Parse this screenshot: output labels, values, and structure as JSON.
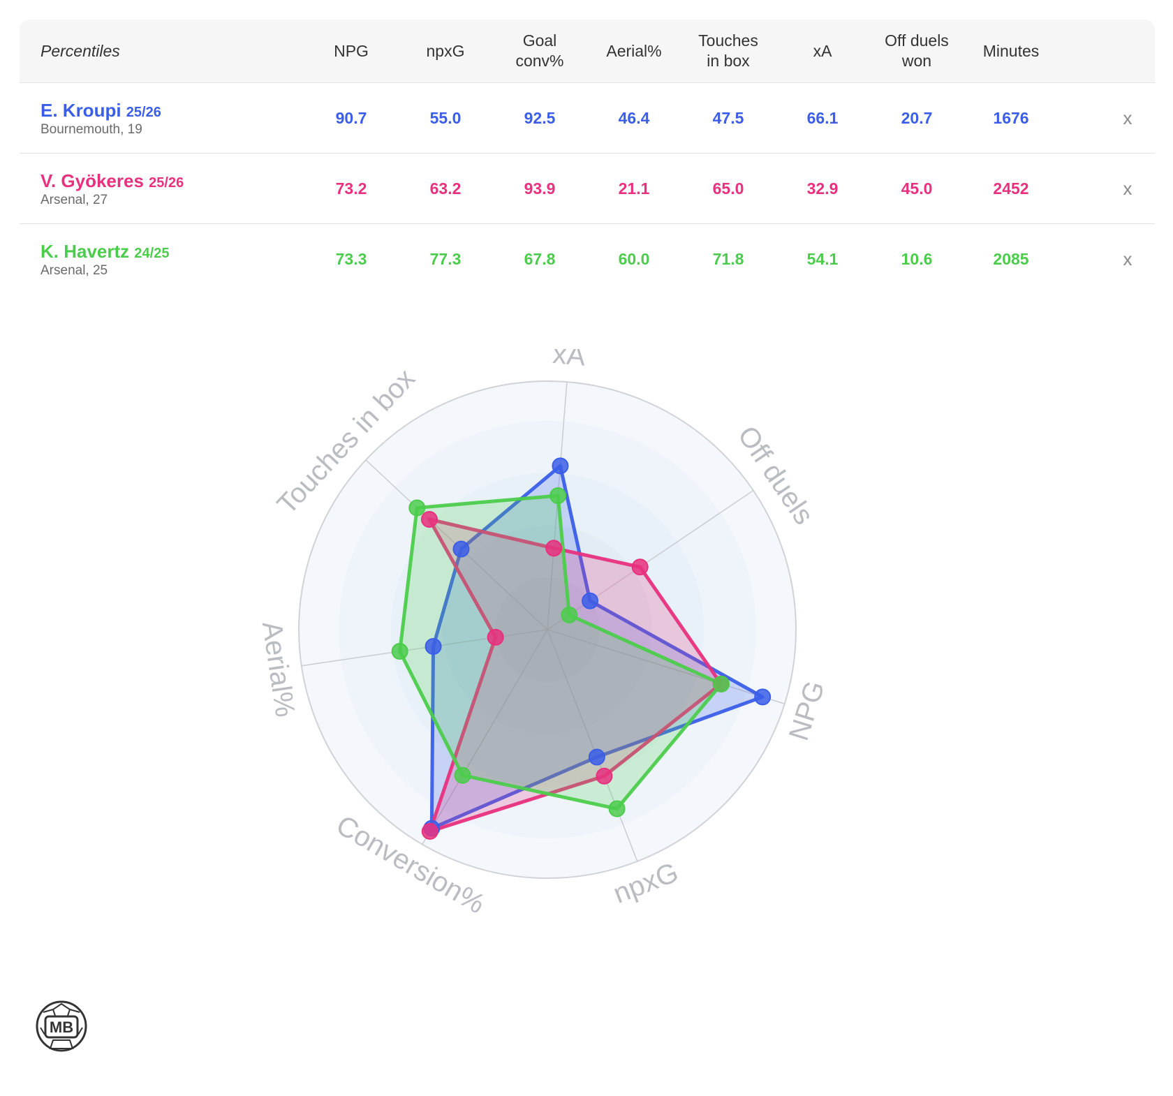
{
  "table": {
    "header_label": "Percentiles",
    "columns": [
      {
        "line1": "NPG",
        "line2": ""
      },
      {
        "line1": "npxG",
        "line2": ""
      },
      {
        "line1": "Goal",
        "line2": "conv%"
      },
      {
        "line1": "Aerial%",
        "line2": ""
      },
      {
        "line1": "Touches",
        "line2": "in box"
      },
      {
        "line1": "xA",
        "line2": ""
      },
      {
        "line1": "Off duels",
        "line2": "won"
      },
      {
        "line1": "Minutes",
        "line2": ""
      }
    ],
    "remove_label": "x",
    "players": [
      {
        "name": "E. Kroupi",
        "season": "25/26",
        "club": "Bournemouth, 19",
        "color": "#3b5ee8",
        "values": [
          "90.7",
          "55.0",
          "92.5",
          "46.4",
          "47.5",
          "66.1",
          "20.7",
          "1676"
        ]
      },
      {
        "name": "V. Gyökeres",
        "season": "25/26",
        "club": "Arsenal, 27",
        "color": "#e8307e",
        "values": [
          "73.2",
          "63.2",
          "93.9",
          "21.1",
          "65.0",
          "32.9",
          "45.0",
          "2452"
        ]
      },
      {
        "name": "K. Havertz",
        "season": "24/25",
        "club": "Arsenal, 25",
        "color": "#4ccc4c",
        "values": [
          "73.3",
          "77.3",
          "67.8",
          "60.0",
          "71.8",
          "54.1",
          "10.6",
          "2085"
        ]
      }
    ]
  },
  "chart_data": {
    "type": "radar",
    "axes": [
      "xA",
      "Off duels",
      "NPG",
      "npxG",
      "Conversion%",
      "Aerial%",
      "Touches in box"
    ],
    "range": [
      0,
      100
    ],
    "series": [
      {
        "name": "E. Kroupi",
        "color": "#3b5ee8",
        "values": [
          66.1,
          20.7,
          90.7,
          55.0,
          92.5,
          46.4,
          47.5
        ]
      },
      {
        "name": "V. Gyökeres",
        "color": "#e8307e",
        "values": [
          32.9,
          45.0,
          73.2,
          63.2,
          93.9,
          21.1,
          65.0
        ]
      },
      {
        "name": "K. Havertz",
        "color": "#4ccc4c",
        "values": [
          54.1,
          10.6,
          73.3,
          77.3,
          67.8,
          60.0,
          71.8
        ]
      }
    ]
  },
  "logo": {
    "text": "MB"
  }
}
